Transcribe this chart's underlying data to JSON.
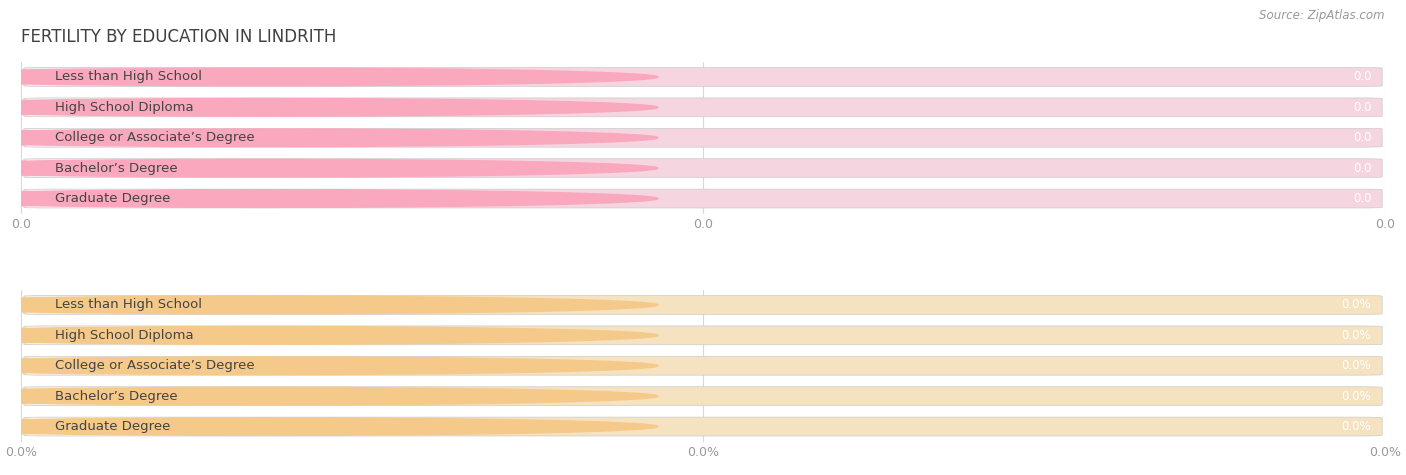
{
  "title": "FERTILITY BY EDUCATION IN LINDRITH",
  "source": "Source: ZipAtlas.com",
  "categories": [
    "Less than High School",
    "High School Diploma",
    "College or Associate’s Degree",
    "Bachelor’s Degree",
    "Graduate Degree"
  ],
  "top_values": [
    0.0,
    0.0,
    0.0,
    0.0,
    0.0
  ],
  "bottom_values": [
    0.0,
    0.0,
    0.0,
    0.0,
    0.0
  ],
  "top_bar_color": "#F9A8BE",
  "top_bg_color": "#F5D5DF",
  "bottom_bar_color": "#F5C98A",
  "bottom_bg_color": "#F5E2C0",
  "background_color": "#ffffff",
  "grid_color": "#d8d8d8",
  "title_color": "#404040",
  "label_text_color": "#444444",
  "value_text_color": "#ffffff",
  "tick_text_color": "#999999",
  "source_text_color": "#999999",
  "title_fontsize": 12,
  "label_fontsize": 9.5,
  "value_fontsize": 8.5,
  "tick_fontsize": 9,
  "source_fontsize": 8.5
}
